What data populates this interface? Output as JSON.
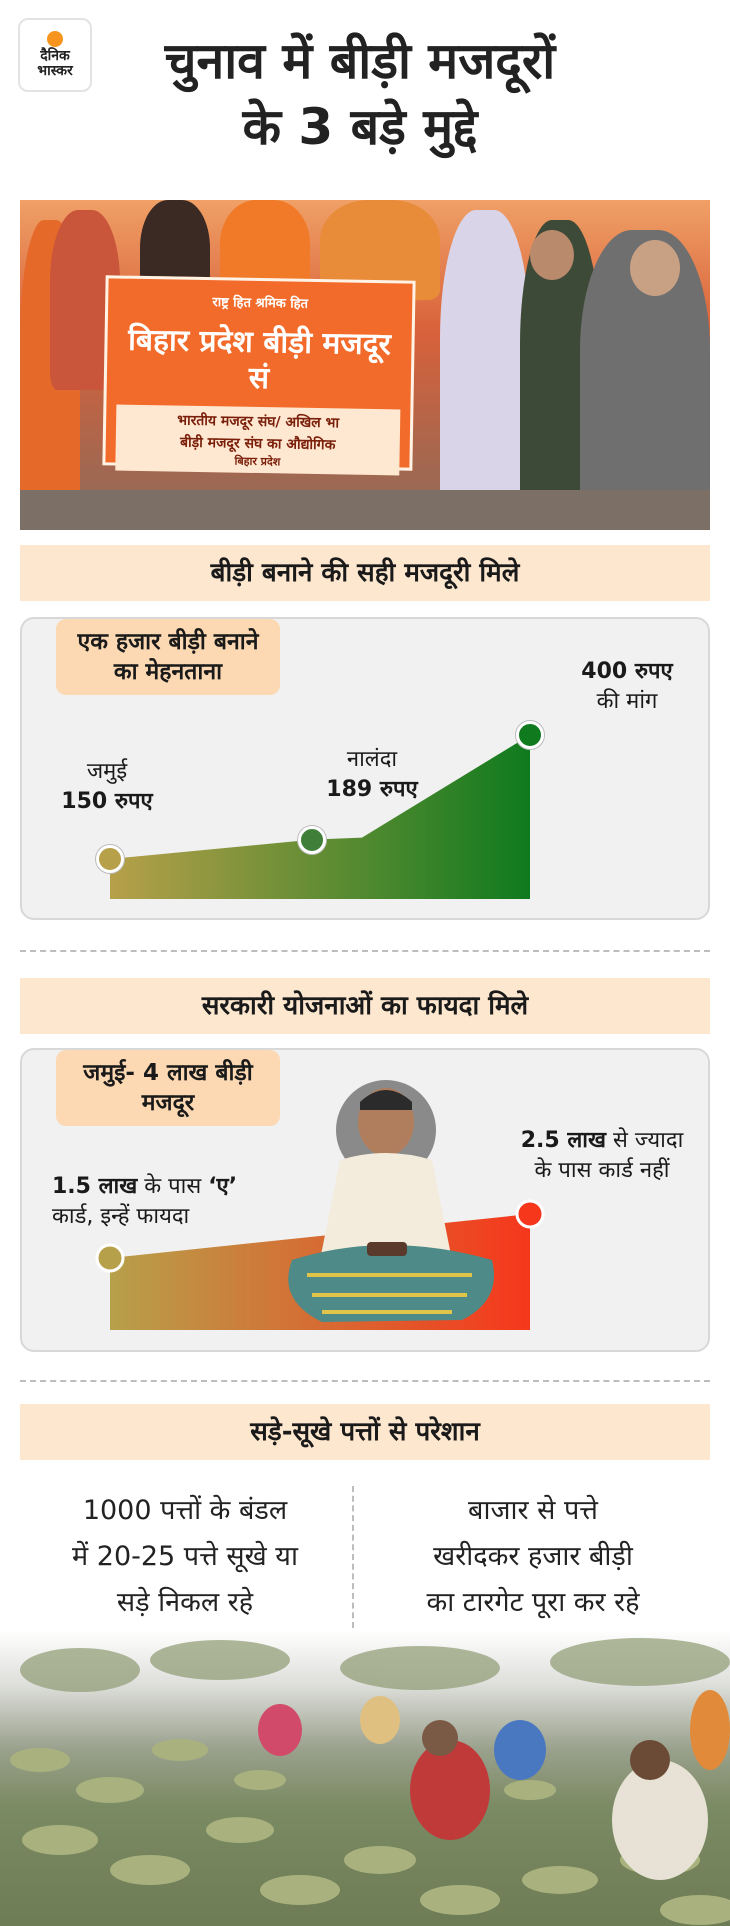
{
  "header": {
    "logo_line1": "दैनिक",
    "logo_line2": "भास्कर",
    "title_line1": "चुनाव में बीड़ी मजदूरों",
    "title_line2": "के 3 बड़े मुद्दे"
  },
  "photo1": {
    "banner_top": "राष्ट्र हित   श्रमिक हित",
    "banner_main": "बिहार प्रदेश बीड़ी मजदूर सं",
    "banner_sub1": "भारतीय मजदूर संघ/ अखिल भा",
    "banner_sub2": "बीड़ी मजदूर संघ का औद्योगिक",
    "banner_state": "बिहार प्रदेश"
  },
  "section1": {
    "heading": "बीड़ी बनाने की सही मजदूरी मिले",
    "tag": "एक हजार बीड़ी बनाने का मेहनताना",
    "points": [
      {
        "place": "जमुई",
        "amount": "150 रुपए",
        "value": 150
      },
      {
        "place": "नालंदा",
        "amount": "189 रुपए",
        "value": 189
      },
      {
        "place": "की मांग",
        "amount": "400 रुपए",
        "value": 400
      }
    ],
    "colors": {
      "start": "#b7a04a",
      "end": "#0f7a1e"
    }
  },
  "section2": {
    "heading": "सरकारी योजनाओं का फायदा मिले",
    "tag": "जमुई- 4 लाख बीड़ी मजदूर",
    "left_bold": "1.5 लाख",
    "left_rest": " के पास ",
    "left_quote": "‘ए’",
    "left_line2": "कार्ड, इन्हें फायदा",
    "right_bold": "2.5 लाख",
    "right_rest": " से ज्यादा",
    "right_line2": "के पास कार्ड नहीं",
    "colors": {
      "start": "#b7a04a",
      "end": "#f6371c"
    }
  },
  "section3": {
    "heading": "सड़े-सूखे पत्तों से परेशान",
    "left_text": [
      "1000 पत्तों के बंडल",
      "में 20-25 पत्ते सूखे या",
      "सड़े निकल रहे"
    ],
    "right_text": [
      "बाजार से पत्ते",
      "खरीदकर हजार बीड़ी",
      "का टारगेट पूरा कर रहे"
    ]
  }
}
